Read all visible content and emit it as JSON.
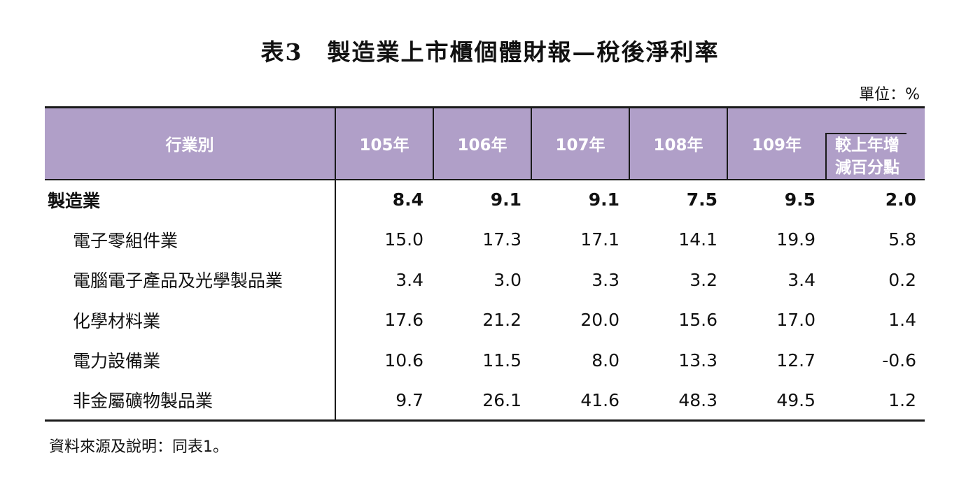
{
  "title": "表3　製造業上市櫃個體財報—稅後淨利率",
  "unit": "單位：%",
  "header": {
    "industry": "行業別",
    "years": [
      "105年",
      "106年",
      "107年",
      "108年",
      "109年"
    ],
    "diff_line1": "較上年增",
    "diff_line2": "減百分點"
  },
  "rows": [
    {
      "name": "製造業",
      "values": [
        "8.4",
        "9.1",
        "9.1",
        "7.5",
        "9.5"
      ],
      "diff": "2.0"
    },
    {
      "name": "電子零組件業",
      "values": [
        "15.0",
        "17.3",
        "17.1",
        "14.1",
        "19.9"
      ],
      "diff": "5.8"
    },
    {
      "name": "電腦電子產品及光學製品業",
      "values": [
        "3.4",
        "3.0",
        "3.3",
        "3.2",
        "3.4"
      ],
      "diff": "0.2"
    },
    {
      "name": "化學材料業",
      "values": [
        "17.6",
        "21.2",
        "20.0",
        "15.6",
        "17.0"
      ],
      "diff": "1.4"
    },
    {
      "name": "電力設備業",
      "values": [
        "10.6",
        "11.5",
        "8.0",
        "13.3",
        "12.7"
      ],
      "diff": "-0.6"
    },
    {
      "name": "非金屬礦物製品業",
      "values": [
        "9.7",
        "26.1",
        "41.6",
        "48.3",
        "49.5"
      ],
      "diff": "1.2"
    }
  ],
  "source": "資料來源及說明：同表1。",
  "colors": {
    "header_bg": "#b09fc8",
    "header_text": "#ffffff",
    "rule": "#1a1a1a"
  }
}
